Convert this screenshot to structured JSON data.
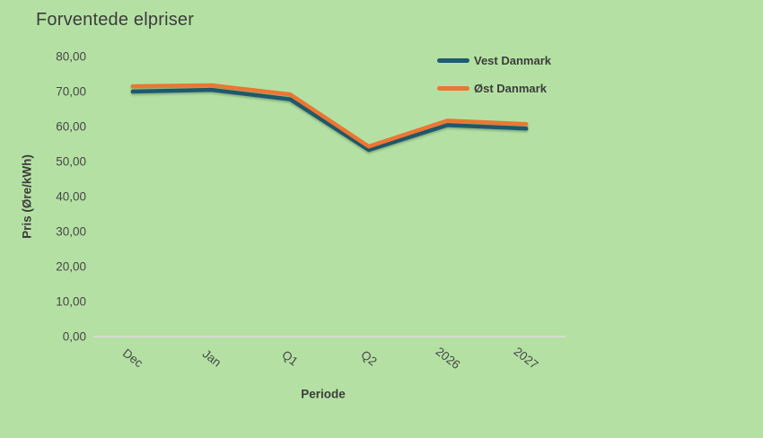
{
  "title": "Forventede elpriser",
  "legend": [
    {
      "label": "Vest Danmark",
      "color": "#1F5B73"
    },
    {
      "label": "Øst Danmark",
      "color": "#EC7633"
    }
  ],
  "chart_data": {
    "type": "line",
    "title": "Forventede elpriser",
    "categories": [
      "Dec",
      "Jan",
      "Q1",
      "Q2",
      "2026",
      "2027"
    ],
    "series": [
      {
        "name": "Vest Danmark",
        "color": "#1F5B73",
        "values": [
          70.0,
          70.5,
          67.8,
          53.3,
          60.4,
          59.4
        ]
      },
      {
        "name": "Øst Danmark",
        "color": "#EC7633",
        "values": [
          71.5,
          71.8,
          69.2,
          54.3,
          61.7,
          60.7
        ]
      }
    ],
    "xlabel": "Periode",
    "ylabel": "Pris (Øre/kWh)",
    "ylim": [
      0,
      80
    ],
    "ytick_step": 10,
    "ytick_labels": [
      "0,00",
      "10,00",
      "20,00",
      "30,00",
      "40,00",
      "50,00",
      "60,00",
      "70,00",
      "80,00"
    ],
    "grid": false,
    "legend_position": "top-right"
  },
  "colors": {
    "background": "#B4E1A3",
    "axis_line": "#D7DAD3",
    "text": "#3C3C3C"
  }
}
